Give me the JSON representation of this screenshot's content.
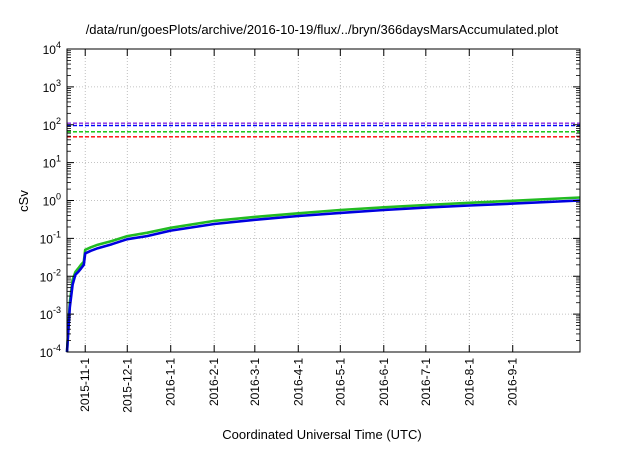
{
  "chart_data": {
    "type": "line",
    "title": "/data/run/goesPlots/archive/2016-10-19/flux/../bryn/366daysMarsAccumulated.plot",
    "xlabel": "Coordinated Universal Time (UTC)",
    "ylabel": "cSv",
    "yscale": "log",
    "ylim": [
      0.0001,
      10000
    ],
    "xlim": [
      "2015-10-19",
      "2016-10-19"
    ],
    "grid": true,
    "x_ticks": [
      "2015-11-1",
      "2015-12-1",
      "2016-1-1",
      "2016-2-1",
      "2016-3-1",
      "2016-4-1",
      "2016-5-1",
      "2016-6-1",
      "2016-7-1",
      "2016-8-1",
      "2016-9-1"
    ],
    "y_ticks": [
      {
        "base": "10",
        "exp": "-4"
      },
      {
        "base": "10",
        "exp": "-3"
      },
      {
        "base": "10",
        "exp": "-2"
      },
      {
        "base": "10",
        "exp": "-1"
      },
      {
        "base": "10",
        "exp": "0"
      },
      {
        "base": "10",
        "exp": "1"
      },
      {
        "base": "10",
        "exp": "2"
      },
      {
        "base": "10",
        "exp": "3"
      },
      {
        "base": "10",
        "exp": "4"
      }
    ],
    "reference_lines": [
      {
        "value": 110,
        "color": "#8a2be2"
      },
      {
        "value": 95,
        "color": "#0000ff"
      },
      {
        "value": 65,
        "color": "#00c000"
      },
      {
        "value": 48,
        "color": "#ff0000"
      }
    ],
    "series": [
      {
        "color": "#22bb22",
        "x": [
          "2015-10-19",
          "2015-10-21",
          "2015-10-23",
          "2015-10-25",
          "2015-10-27",
          "2015-10-29",
          "2015-10-31",
          "2015-11-1",
          "2015-11-5",
          "2015-11-10",
          "2015-11-20",
          "2015-12-1",
          "2015-12-15",
          "2016-1-1",
          "2016-2-1",
          "2016-3-1",
          "2016-4-1",
          "2016-5-1",
          "2016-6-1",
          "2016-7-1",
          "2016-8-1",
          "2016-9-1",
          "2016-10-19"
        ],
        "values": [
          0.0001,
          0.002,
          0.008,
          0.013,
          0.016,
          0.02,
          0.024,
          0.05,
          0.058,
          0.068,
          0.085,
          0.115,
          0.14,
          0.19,
          0.29,
          0.37,
          0.46,
          0.56,
          0.66,
          0.76,
          0.87,
          0.98,
          1.2
        ]
      },
      {
        "color": "#0000e0",
        "x": [
          "2015-10-19",
          "2015-10-21",
          "2015-10-23",
          "2015-10-25",
          "2015-10-27",
          "2015-10-29",
          "2015-10-31",
          "2015-11-1",
          "2015-11-5",
          "2015-11-10",
          "2015-11-20",
          "2015-12-1",
          "2015-12-15",
          "2016-1-1",
          "2016-2-1",
          "2016-3-1",
          "2016-4-1",
          "2016-5-1",
          "2016-6-1",
          "2016-7-1",
          "2016-8-1",
          "2016-9-1",
          "2016-10-19"
        ],
        "values": [
          0.0001,
          0.0015,
          0.006,
          0.011,
          0.013,
          0.016,
          0.02,
          0.04,
          0.047,
          0.055,
          0.07,
          0.095,
          0.115,
          0.16,
          0.24,
          0.31,
          0.39,
          0.47,
          0.56,
          0.65,
          0.74,
          0.83,
          1.0
        ]
      }
    ]
  }
}
